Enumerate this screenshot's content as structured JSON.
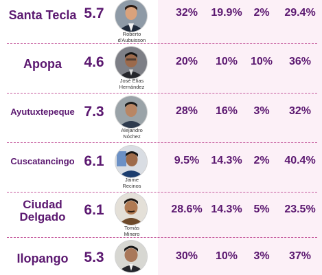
{
  "colors": {
    "text_purple": "#5b1870",
    "divider_pink": "#c4569a",
    "panel_pink": "#fcf0f7"
  },
  "rows": [
    {
      "municipality": "Santa Tecla",
      "score": "5.7",
      "candidate": [
        "Roberto",
        "d'Aubuisson"
      ],
      "values": [
        "32%",
        "19.9%",
        "2%",
        "29.4%"
      ]
    },
    {
      "municipality": "Apopa",
      "score": "4.6",
      "candidate": [
        "José Elías",
        "Hernández"
      ],
      "values": [
        "20%",
        "10%",
        "10%",
        "36%"
      ]
    },
    {
      "municipality": "Ayutuxtepeque",
      "score": "7.3",
      "candidate": [
        "Alejandro",
        "Nóchez"
      ],
      "values": [
        "28%",
        "16%",
        "3%",
        "32%"
      ]
    },
    {
      "municipality": "Cuscatancingo",
      "score": "6.1",
      "candidate": [
        "Jaime",
        "Recinos"
      ],
      "values": [
        "9.5%",
        "14.3%",
        "2%",
        "40.4%"
      ]
    },
    {
      "municipality_lines": [
        "Ciudad",
        "Delgado"
      ],
      "score": "6.1",
      "candidate": [
        "Tomás",
        "Minero"
      ],
      "values": [
        "28.6%",
        "14.3%",
        "5%",
        "23.5%"
      ]
    },
    {
      "municipality": "Ilopango",
      "score": "5.3",
      "candidate": [],
      "values": [
        "30%",
        "10%",
        "3%",
        "37%"
      ]
    }
  ]
}
